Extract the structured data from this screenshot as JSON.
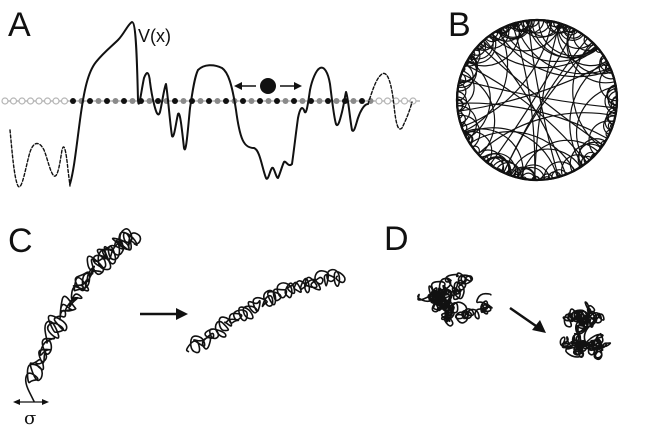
{
  "panels": [
    {
      "letter": "A",
      "potential_label": "V(x)"
    },
    {
      "letter": "B"
    },
    {
      "letter": "C",
      "scale_label": "σ"
    },
    {
      "letter": "D"
    }
  ],
  "colors": {
    "ink": "#111111",
    "gray_site": "#8a8a8a",
    "light_gray": "#b5b5b5"
  }
}
